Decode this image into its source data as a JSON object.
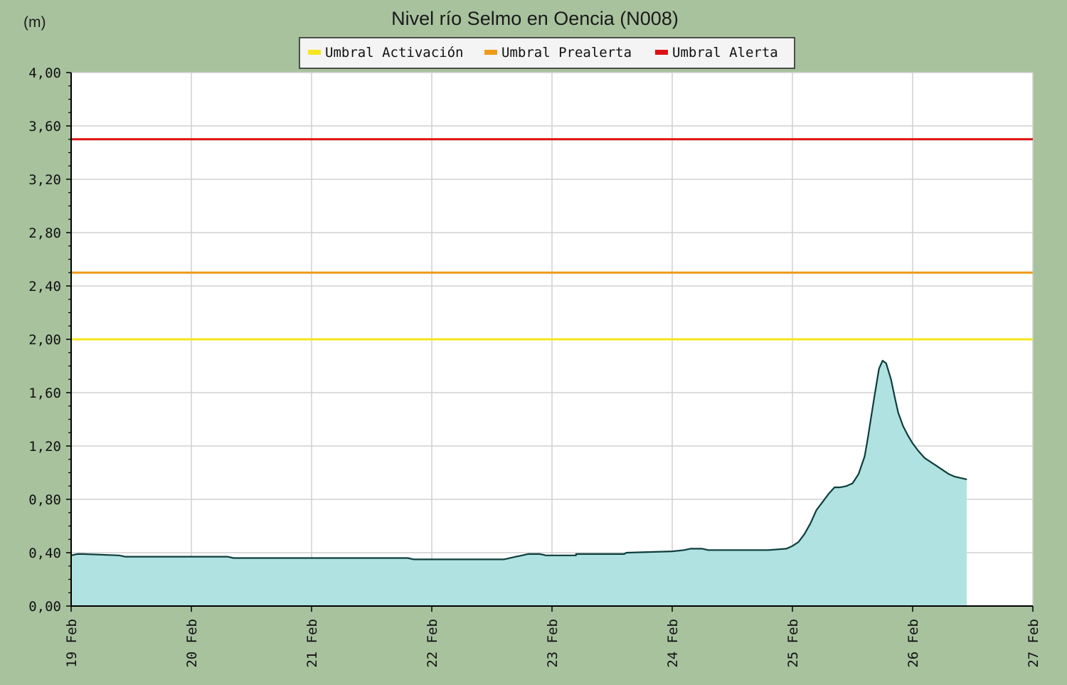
{
  "chart_data": {
    "type": "area",
    "title": "Nivel río Selmo en Oencia  (N008)",
    "ylabel": "(m)",
    "xlabel": "",
    "ylim": [
      0,
      4
    ],
    "yticks": [
      0,
      0.4,
      0.8,
      1.2,
      1.6,
      2.0,
      2.4,
      2.8,
      3.2,
      3.6,
      4.0
    ],
    "ytick_labels": [
      "0,00",
      "0,40",
      "0,80",
      "1,20",
      "1,60",
      "2,00",
      "2,40",
      "2,80",
      "3,20",
      "3,60",
      "4,00"
    ],
    "xlim": [
      19,
      27
    ],
    "xticks": [
      19,
      20,
      21,
      22,
      23,
      24,
      25,
      26,
      27
    ],
    "xtick_labels": [
      "19 Feb",
      "20 Feb",
      "21 Feb",
      "22 Feb",
      "23 Feb",
      "24 Feb",
      "25 Feb",
      "26 Feb",
      "27 Feb"
    ],
    "grid": true,
    "legend_position": "top-center",
    "thresholds": [
      {
        "name": "Umbral Activación",
        "value": 2.0,
        "color": "#f5e61e"
      },
      {
        "name": "Umbral Prealerta",
        "value": 2.5,
        "color": "#ee9a1a"
      },
      {
        "name": "Umbral Alerta",
        "value": 3.5,
        "color": "#dd1111"
      }
    ],
    "series": [
      {
        "fill_color": "#b0e2e2",
        "line_color": "#0d3d3d",
        "x": [
          19.0,
          19.05,
          19.1,
          19.4,
          19.45,
          20.3,
          20.35,
          20.85,
          20.9,
          21.2,
          21.3,
          21.8,
          21.85,
          22.2,
          22.3,
          22.5,
          22.55,
          22.6,
          22.7,
          22.75,
          22.8,
          22.9,
          22.95,
          23.1,
          23.2,
          23.2,
          23.6,
          23.62,
          24.0,
          24.1,
          24.15,
          24.25,
          24.3,
          24.6,
          24.8,
          24.95,
          25.0,
          25.05,
          25.1,
          25.15,
          25.2,
          25.25,
          25.3,
          25.35,
          25.4,
          25.45,
          25.5,
          25.55,
          25.6,
          25.62,
          25.68,
          25.72,
          25.75,
          25.78,
          25.82,
          25.85,
          25.88,
          25.92,
          25.96,
          26.0,
          26.05,
          26.1,
          26.2,
          26.3,
          26.35,
          26.45
        ],
        "values": [
          0.38,
          0.39,
          0.39,
          0.38,
          0.37,
          0.37,
          0.36,
          0.36,
          0.36,
          0.36,
          0.36,
          0.36,
          0.35,
          0.35,
          0.35,
          0.35,
          0.35,
          0.35,
          0.37,
          0.38,
          0.39,
          0.39,
          0.38,
          0.38,
          0.38,
          0.39,
          0.39,
          0.4,
          0.41,
          0.42,
          0.43,
          0.43,
          0.42,
          0.42,
          0.42,
          0.43,
          0.45,
          0.48,
          0.54,
          0.62,
          0.72,
          0.78,
          0.84,
          0.89,
          0.89,
          0.9,
          0.92,
          0.99,
          1.12,
          1.22,
          1.56,
          1.78,
          1.84,
          1.82,
          1.7,
          1.57,
          1.45,
          1.35,
          1.28,
          1.22,
          1.16,
          1.11,
          1.05,
          0.99,
          0.97,
          0.95
        ]
      }
    ]
  }
}
